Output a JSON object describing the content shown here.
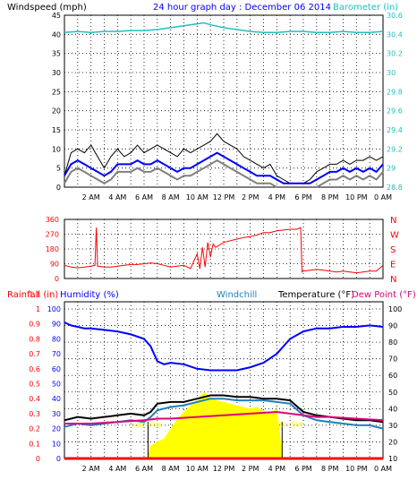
{
  "header": {
    "windspeed_label": "Windspeed (mph)",
    "graph_title": "24 hour graph day : December 06 2014",
    "barometer_label": "Barometer (in)"
  },
  "colors": {
    "wind_gust": "#000000",
    "wind_avg": "#0000ff",
    "wind_gray": "#808080",
    "barometer": "#20c0c0",
    "direction": "#ff0000",
    "humidity": "#0000ff",
    "windchill": "#2080c0",
    "temperature": "#000000",
    "dewpoint": "#e0007f",
    "rainfall": "#ff0000",
    "solar": "#ffff00",
    "grid": "#000000"
  },
  "chart_data": [
    {
      "type": "line",
      "title": "24 hour graph day : December 06 2014",
      "ylabel": "Windspeed (mph)",
      "y2label": "Barometer (in)",
      "ylim": [
        0,
        45
      ],
      "y2lim": [
        28.8,
        30.6
      ],
      "yticks": [
        "0",
        "5",
        "10",
        "15",
        "20",
        "25",
        "30",
        "35",
        "40",
        "45"
      ],
      "y2ticks": [
        "28.8",
        "29",
        "29.2",
        "29.4",
        "29.6",
        "29.8",
        "30",
        "30.2",
        "30.4",
        "30.6"
      ],
      "xticks": [
        "2 AM",
        "4 AM",
        "6 AM",
        "8 AM",
        "10 AM",
        "12 PM",
        "2 PM",
        "4 PM",
        "6 PM",
        "8 PM",
        "10 PM",
        "0 AM"
      ],
      "xlim_hours": [
        0,
        24
      ],
      "grid": true,
      "series": [
        {
          "key": "gust",
          "x": [
            0,
            0.5,
            1,
            1.5,
            2,
            2.5,
            3,
            3.5,
            4,
            4.5,
            5,
            5.5,
            6,
            6.5,
            7,
            7.5,
            8,
            8.5,
            9,
            9.5,
            10,
            10.5,
            11,
            11.5,
            12,
            12.5,
            13,
            13.5,
            14,
            14.5,
            15,
            15.5,
            16,
            16.5,
            17,
            17.5,
            18,
            18.5,
            19,
            19.5,
            20,
            20.5,
            21,
            21.5,
            22,
            22.5,
            23,
            23.5,
            24
          ],
          "values": [
            3,
            9,
            10,
            9,
            11,
            8,
            5,
            8,
            10,
            8,
            9,
            11,
            9,
            10,
            11,
            10,
            9,
            8,
            10,
            9,
            10,
            11,
            12,
            14,
            12,
            11,
            10,
            8,
            7,
            6,
            5,
            6,
            3,
            2,
            1,
            1,
            1,
            2,
            4,
            5,
            6,
            6,
            7,
            6,
            7,
            7,
            8,
            7,
            8
          ]
        },
        {
          "key": "average",
          "x": [
            0,
            0.5,
            1,
            1.5,
            2,
            2.5,
            3,
            3.5,
            4,
            4.5,
            5,
            5.5,
            6,
            6.5,
            7,
            7.5,
            8,
            8.5,
            9,
            9.5,
            10,
            10.5,
            11,
            11.5,
            12,
            12.5,
            13,
            13.5,
            14,
            14.5,
            15,
            15.5,
            16,
            16.5,
            17,
            17.5,
            18,
            18.5,
            19,
            19.5,
            20,
            20.5,
            21,
            21.5,
            22,
            22.5,
            23,
            23.5,
            24
          ],
          "values": [
            3,
            6,
            7,
            6,
            5,
            4,
            3,
            4,
            6,
            6,
            6,
            7,
            6,
            6,
            7,
            6,
            5,
            4,
            5,
            5,
            6,
            7,
            8,
            9,
            8,
            7,
            6,
            5,
            4,
            3,
            3,
            3,
            2,
            1,
            1,
            1,
            1,
            1,
            2,
            3,
            4,
            4,
            5,
            4,
            5,
            4,
            5,
            4,
            6
          ]
        },
        {
          "key": "barometer",
          "x": [
            0,
            1,
            2,
            3,
            4,
            5,
            6,
            7,
            8,
            9,
            10,
            10.5,
            11,
            12,
            13,
            14,
            15,
            16,
            17,
            18,
            19,
            20,
            21,
            22,
            23,
            24
          ],
          "values": [
            30.42,
            30.43,
            30.42,
            30.43,
            30.43,
            30.44,
            30.44,
            30.45,
            30.47,
            30.49,
            30.51,
            30.52,
            30.5,
            30.47,
            30.45,
            30.43,
            30.42,
            30.42,
            30.43,
            30.43,
            30.42,
            30.42,
            30.43,
            30.42,
            30.42,
            30.43
          ]
        }
      ]
    },
    {
      "type": "line",
      "title": "",
      "ylim": [
        0,
        360
      ],
      "yticks": [
        "0",
        "90",
        "180",
        "270",
        "360"
      ],
      "direction_labels": [
        "N",
        "W",
        "S",
        "E",
        "N"
      ],
      "grid": true,
      "series": [
        {
          "key": "direction",
          "x": [
            0,
            0.5,
            1,
            1.5,
            2,
            2.3,
            2.4,
            2.5,
            3,
            3.5,
            4,
            4.5,
            5,
            5.5,
            6,
            6.5,
            7,
            7.5,
            8,
            8.5,
            9,
            9.5,
            10,
            10.2,
            10.4,
            10.6,
            10.8,
            11,
            11.2,
            11.4,
            11.6,
            11.8,
            12,
            12.5,
            13,
            13.5,
            14,
            14.5,
            15,
            15.5,
            16,
            16.5,
            17,
            17.5,
            17.8,
            17.9,
            18,
            18.5,
            19,
            19.5,
            20,
            20.5,
            21,
            21.5,
            22,
            22.5,
            23,
            23.5,
            24
          ],
          "values": [
            80,
            70,
            65,
            70,
            75,
            80,
            310,
            75,
            70,
            70,
            75,
            80,
            85,
            85,
            90,
            95,
            90,
            80,
            70,
            75,
            80,
            60,
            150,
            60,
            190,
            70,
            220,
            130,
            210,
            190,
            200,
            210,
            220,
            230,
            240,
            250,
            255,
            265,
            280,
            280,
            290,
            295,
            300,
            300,
            310,
            40,
            45,
            50,
            55,
            50,
            45,
            40,
            45,
            40,
            35,
            40,
            45,
            45,
            80
          ]
        }
      ]
    },
    {
      "type": "line",
      "title": "",
      "legend": [
        "Rainfall (in)",
        "Humidity (%)",
        "Windchill",
        "Temperature (°F)",
        "Dew Point (°F)"
      ],
      "ylim_rain": [
        0,
        1.0
      ],
      "ylim_humidity": [
        0,
        100
      ],
      "ylim_temp": [
        10,
        100
      ],
      "yticks_rain": [
        "0",
        "0.1",
        "0.2",
        "0.3",
        "0.4",
        "0.5",
        "0.6",
        "0.7",
        "0.8",
        "0.9",
        "1",
        "1.1"
      ],
      "yticks_humidity": [
        "0",
        "10",
        "20",
        "30",
        "40",
        "50",
        "60",
        "70",
        "80",
        "90",
        "100"
      ],
      "yticks_temp": [
        "10",
        "20",
        "30",
        "40",
        "50",
        "60",
        "70",
        "80",
        "90",
        "100"
      ],
      "annotations": [
        "Sun Rise",
        "Sun Set"
      ],
      "grid": true,
      "series": [
        {
          "key": "humidity",
          "x": [
            0,
            0.5,
            1,
            1.5,
            2,
            3,
            4,
            5,
            6,
            6.5,
            7,
            7.5,
            8,
            9,
            10,
            11,
            12,
            13,
            14,
            15,
            16,
            17,
            18,
            19,
            20,
            21,
            22,
            23,
            24
          ],
          "values": [
            91,
            89,
            88,
            87,
            87,
            86,
            85,
            83,
            80,
            75,
            65,
            63,
            64,
            63,
            60,
            59,
            59,
            59,
            61,
            64,
            70,
            80,
            85,
            87,
            87,
            88,
            88,
            89,
            88
          ]
        },
        {
          "key": "temperature",
          "x": [
            0,
            1,
            2,
            3,
            4,
            5,
            6,
            6.5,
            7,
            8,
            9,
            10,
            11,
            12,
            13,
            14,
            15,
            16,
            17,
            18,
            19,
            20,
            21,
            22,
            23,
            24
          ],
          "values": [
            33,
            35,
            34,
            35,
            36,
            37,
            36,
            38,
            43,
            44,
            44,
            46,
            48,
            48,
            47,
            47,
            46,
            46,
            45,
            38,
            36,
            35,
            34,
            33,
            33,
            32
          ]
        },
        {
          "key": "windchill",
          "x": [
            0,
            1,
            2,
            3,
            4,
            5,
            6,
            6.5,
            7,
            8,
            9,
            10,
            11,
            12,
            13,
            14,
            15,
            16,
            17,
            18,
            19,
            20,
            21,
            22,
            23,
            24
          ],
          "values": [
            29,
            31,
            30,
            31,
            32,
            33,
            32,
            35,
            39,
            41,
            42,
            44,
            46,
            46,
            45,
            45,
            45,
            44,
            43,
            36,
            33,
            32,
            31,
            30,
            30,
            28
          ]
        },
        {
          "key": "dewpoint",
          "x": [
            0,
            2,
            4,
            6,
            7,
            8,
            10,
            12,
            14,
            16,
            17,
            18,
            19,
            20,
            22,
            24
          ],
          "values": [
            31,
            31,
            32,
            33,
            34,
            34,
            35,
            36,
            37,
            38,
            37,
            36,
            35,
            35,
            34,
            33
          ]
        },
        {
          "key": "rainfall",
          "x": [
            0,
            24
          ],
          "values": [
            0,
            0
          ]
        },
        {
          "key": "solar",
          "x": [
            6.3,
            6.5,
            7,
            7.5,
            8,
            8.5,
            9,
            9.5,
            10,
            10.5,
            11,
            11.5,
            12,
            12.5,
            13,
            13.5,
            14,
            14.5,
            15,
            15.5,
            16,
            16.2,
            16.4
          ],
          "values": [
            2,
            8,
            10,
            12,
            18,
            24,
            28,
            32,
            35,
            40,
            37,
            35,
            34,
            33,
            32,
            31,
            30,
            31,
            29,
            27,
            30,
            18,
            2
          ]
        }
      ]
    }
  ]
}
